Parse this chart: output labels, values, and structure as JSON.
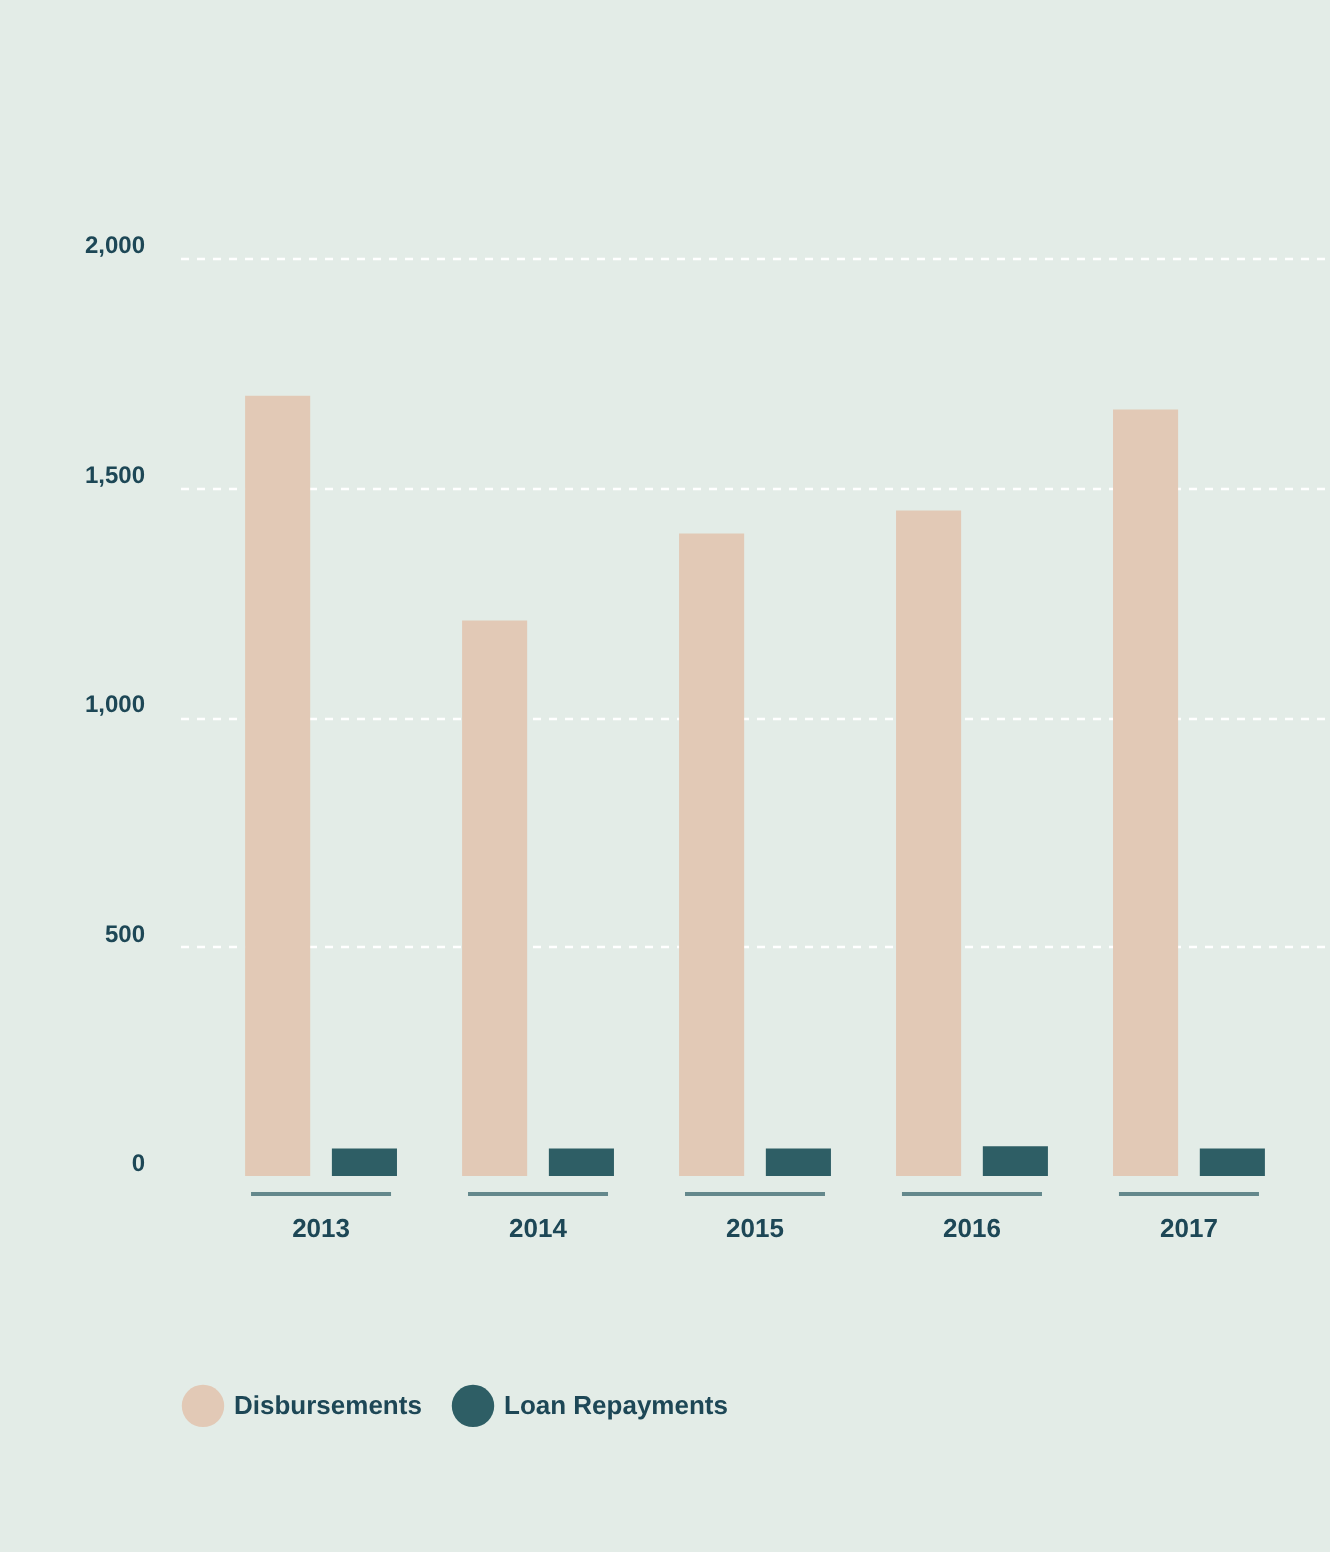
{
  "chart_data": {
    "type": "bar",
    "categories": [
      "2013",
      "2014",
      "2015",
      "2016",
      "2017"
    ],
    "series": [
      {
        "name": "Disbursements",
        "color": "#e2c9b6",
        "values": [
          1700,
          1210,
          1400,
          1450,
          1670
        ]
      },
      {
        "name": "Loan Repayments",
        "color": "#2e5e65",
        "values": [
          60,
          60,
          60,
          65,
          60
        ]
      }
    ],
    "ylim": [
      0,
      2000
    ],
    "yticks": [
      0,
      500,
      {
        "value": 1000,
        "label": "1,000"
      },
      {
        "value": 1500,
        "label": "1,500"
      },
      {
        "value": 2000,
        "label": "2,000"
      }
    ],
    "grid": "y",
    "legend": "bottom"
  }
}
